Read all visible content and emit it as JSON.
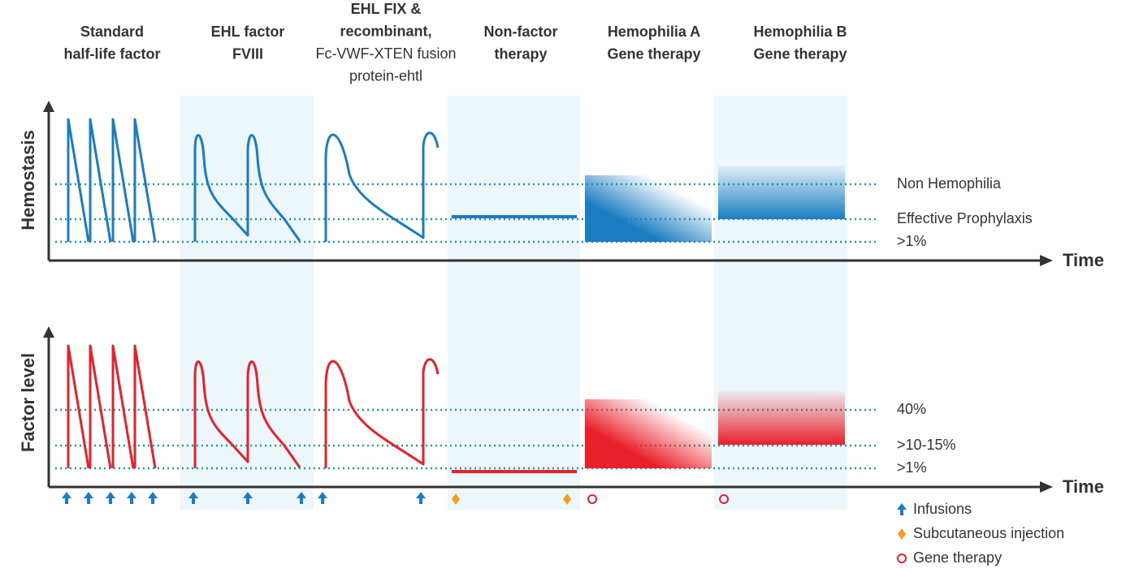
{
  "columns": [
    {
      "title": [
        "Standard",
        "half-life factor"
      ]
    },
    {
      "title": [
        "EHL factor",
        "FVIII"
      ]
    },
    {
      "title": [
        "EHL FIX &",
        "recombinant,",
        "Fc-VWF-XTEN fusion",
        "protein-ehtl"
      ]
    },
    {
      "title": [
        "Non-factor",
        "therapy"
      ]
    },
    {
      "title": [
        "Hemophilia A",
        "Gene therapy"
      ]
    },
    {
      "title": [
        "Hemophilia B",
        "Gene therapy"
      ]
    }
  ],
  "panels": [
    {
      "axis_label": "Hemostasis",
      "time_label": "Time",
      "levels": [
        "Non Hemophilia",
        "Effective Prophylaxis",
        ">1%"
      ]
    },
    {
      "axis_label": "Factor level",
      "time_label": "Time",
      "levels": [
        "40%",
        ">10-15%",
        ">1%"
      ]
    }
  ],
  "legend": [
    "Infusions",
    "Subcutaneous injection",
    "Gene therapy"
  ]
}
